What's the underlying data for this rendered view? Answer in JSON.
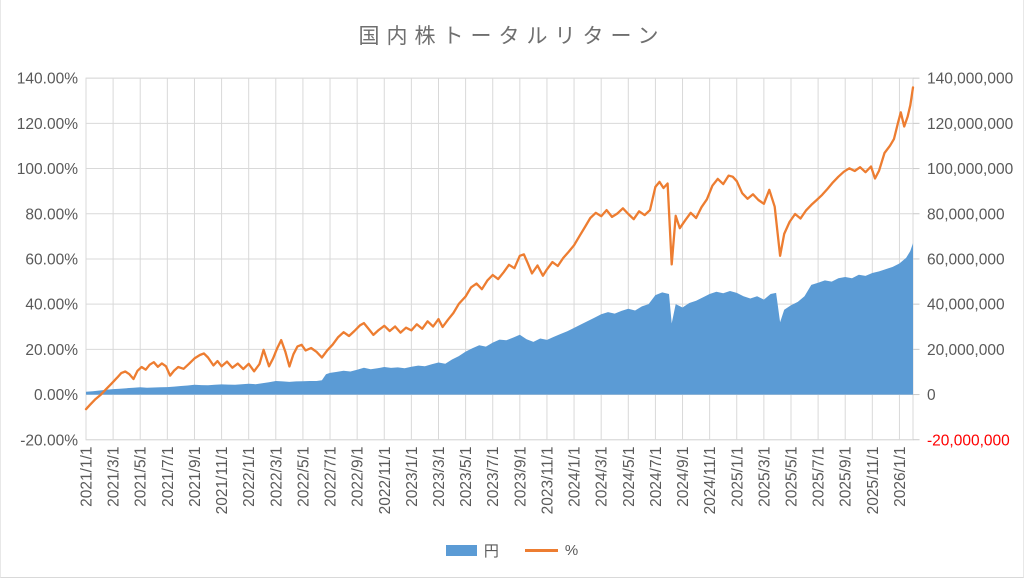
{
  "title": "国内株トータルリターン",
  "legend": {
    "items": [
      {
        "label": "円"
      },
      {
        "label": "%"
      }
    ]
  },
  "colors": {
    "yen_area": "#5B9BD5",
    "percent_line": "#ED7D31",
    "gridline": "#D9D9D9",
    "axis_text": "#595959",
    "negative_axis_text": "#FF0000",
    "title_text": "#6F6F6F"
  },
  "chart_data": {
    "type": "combo",
    "title": "国内株トータルリターン",
    "grid": true,
    "legend_position": "bottom",
    "x_axis": {
      "unit": "date",
      "tick_interval_months": 2,
      "label_rotation_deg": -90,
      "ticks": [
        "2021/1/1",
        "2021/3/1",
        "2021/5/1",
        "2021/7/1",
        "2021/9/1",
        "2021/11/1",
        "2022/1/1",
        "2022/3/1",
        "2022/5/1",
        "2022/7/1",
        "2022/9/1",
        "2022/11/1",
        "2023/1/1",
        "2023/3/1",
        "2023/5/1",
        "2023/7/1",
        "2023/9/1",
        "2023/11/1",
        "2024/1/1",
        "2024/3/1",
        "2024/5/1",
        "2024/7/1",
        "2024/9/1",
        "2024/11/1",
        "2025/1/1",
        "2025/3/1",
        "2025/5/1",
        "2025/7/1",
        "2025/9/1",
        "2025/11/1",
        "2026/1/1"
      ]
    },
    "left_axis": {
      "unit": "percent",
      "min": -20,
      "max": 140,
      "tick_step": 20,
      "ticks": [
        "140.00%",
        "120.00%",
        "100.00%",
        "80.00%",
        "60.00%",
        "40.00%",
        "20.00%",
        "0.00%",
        "-20.00%"
      ]
    },
    "right_axis": {
      "unit": "yen",
      "min": -20000000,
      "max": 140000000,
      "tick_step": 20000000,
      "negative_tick_color": "#FF0000",
      "ticks": [
        "140,000,000",
        "120,000,000",
        "100,000,000",
        "80,000,000",
        "60,000,000",
        "40,000,000",
        "20,000,000",
        "0",
        "-20,000,000"
      ]
    },
    "series": [
      {
        "name": "円",
        "chart_type": "area",
        "axis": "right",
        "color": "#5B9BD5",
        "x_unit": "months_since_2021_01",
        "value_unit": "million_yen",
        "points": [
          [
            0,
            1.2
          ],
          [
            0.5,
            1.5
          ],
          [
            1,
            1.8
          ],
          [
            1.5,
            2.1
          ],
          [
            2,
            2.4
          ],
          [
            2.5,
            2.6
          ],
          [
            3,
            2.8
          ],
          [
            3.5,
            3
          ],
          [
            4,
            3.2
          ],
          [
            4.5,
            3
          ],
          [
            5,
            3.1
          ],
          [
            5.5,
            3.2
          ],
          [
            6,
            3.3
          ],
          [
            6.5,
            3.5
          ],
          [
            7,
            3.8
          ],
          [
            7.5,
            4
          ],
          [
            8,
            4.3
          ],
          [
            8.5,
            4.2
          ],
          [
            9,
            4.1
          ],
          [
            9.5,
            4.3
          ],
          [
            10,
            4.5
          ],
          [
            10.5,
            4.4
          ],
          [
            11,
            4.3
          ],
          [
            11.5,
            4.6
          ],
          [
            12,
            4.8
          ],
          [
            12.5,
            4.6
          ],
          [
            13,
            5
          ],
          [
            13.5,
            5.4
          ],
          [
            14,
            6
          ],
          [
            14.5,
            5.8
          ],
          [
            15,
            5.6
          ],
          [
            15.5,
            5.8
          ],
          [
            16,
            5.9
          ],
          [
            16.5,
            6
          ],
          [
            17,
            6
          ],
          [
            17.4,
            6.3
          ],
          [
            17.7,
            9
          ],
          [
            18,
            9.6
          ],
          [
            18.5,
            10
          ],
          [
            19,
            10.5
          ],
          [
            19.5,
            10.2
          ],
          [
            20,
            11
          ],
          [
            20.5,
            11.9
          ],
          [
            21,
            11.2
          ],
          [
            21.5,
            11.6
          ],
          [
            22,
            12.2
          ],
          [
            22.5,
            11.8
          ],
          [
            23,
            12
          ],
          [
            23.5,
            11.6
          ],
          [
            24,
            12.3
          ],
          [
            24.5,
            12.8
          ],
          [
            25,
            12.5
          ],
          [
            25.5,
            13.4
          ],
          [
            26,
            14.2
          ],
          [
            26.5,
            13.6
          ],
          [
            27,
            15.5
          ],
          [
            27.5,
            17
          ],
          [
            28,
            19
          ],
          [
            28.5,
            20.5
          ],
          [
            29,
            21.8
          ],
          [
            29.5,
            21.2
          ],
          [
            30,
            23
          ],
          [
            30.5,
            24.3
          ],
          [
            31,
            24
          ],
          [
            31.5,
            25.2
          ],
          [
            32,
            26.5
          ],
          [
            32.5,
            24.5
          ],
          [
            33,
            23.3
          ],
          [
            33.5,
            24.8
          ],
          [
            34,
            24.2
          ],
          [
            34.5,
            25.5
          ],
          [
            35,
            26.8
          ],
          [
            35.5,
            28
          ],
          [
            36,
            29.5
          ],
          [
            36.5,
            31
          ],
          [
            37,
            32.5
          ],
          [
            37.5,
            34
          ],
          [
            38,
            35.5
          ],
          [
            38.5,
            36.5
          ],
          [
            39,
            35.8
          ],
          [
            39.5,
            37
          ],
          [
            40,
            38
          ],
          [
            40.5,
            37.2
          ],
          [
            41,
            39
          ],
          [
            41.5,
            40
          ],
          [
            42,
            44
          ],
          [
            42.5,
            45.2
          ],
          [
            43,
            44.5
          ],
          [
            43.2,
            31.5
          ],
          [
            43.5,
            40
          ],
          [
            44,
            38.5
          ],
          [
            44.5,
            40.5
          ],
          [
            45,
            41.5
          ],
          [
            45.5,
            43
          ],
          [
            46,
            44.5
          ],
          [
            46.5,
            45.5
          ],
          [
            47,
            44.8
          ],
          [
            47.5,
            45.8
          ],
          [
            48,
            45
          ],
          [
            48.5,
            43.5
          ],
          [
            49,
            42.5
          ],
          [
            49.5,
            43.5
          ],
          [
            50,
            42
          ],
          [
            50.5,
            44.5
          ],
          [
            50.9,
            45
          ],
          [
            51.2,
            32
          ],
          [
            51.5,
            37.5
          ],
          [
            52,
            39.5
          ],
          [
            52.5,
            41
          ],
          [
            53,
            43.5
          ],
          [
            53.5,
            48.5
          ],
          [
            54,
            49.5
          ],
          [
            54.5,
            50.5
          ],
          [
            55,
            50
          ],
          [
            55.5,
            51.5
          ],
          [
            56,
            52
          ],
          [
            56.5,
            51.5
          ],
          [
            57,
            53
          ],
          [
            57.5,
            52.5
          ],
          [
            58,
            53.8
          ],
          [
            58.5,
            54.5
          ],
          [
            59,
            55.5
          ],
          [
            59.5,
            56.5
          ],
          [
            60,
            58
          ],
          [
            60.5,
            60.5
          ],
          [
            60.8,
            63.5
          ],
          [
            61,
            67
          ]
        ]
      },
      {
        "name": "%",
        "chart_type": "line",
        "axis": "left",
        "color": "#ED7D31",
        "x_unit": "months_since_2021_01",
        "value_unit": "percent",
        "points": [
          [
            0,
            -6.5
          ],
          [
            0.3,
            -4.5
          ],
          [
            0.7,
            -2
          ],
          [
            1.1,
            0
          ],
          [
            1.5,
            2.5
          ],
          [
            1.9,
            5
          ],
          [
            2.3,
            7.5
          ],
          [
            2.6,
            9.5
          ],
          [
            2.9,
            10.2
          ],
          [
            3.2,
            9
          ],
          [
            3.5,
            6.9
          ],
          [
            3.8,
            10.5
          ],
          [
            4.1,
            12.2
          ],
          [
            4.4,
            11
          ],
          [
            4.7,
            13.2
          ],
          [
            5,
            14.3
          ],
          [
            5.3,
            12.3
          ],
          [
            5.6,
            13.8
          ],
          [
            5.9,
            12.5
          ],
          [
            6.2,
            8.4
          ],
          [
            6.5,
            10.6
          ],
          [
            6.8,
            12.2
          ],
          [
            7.2,
            11.4
          ],
          [
            7.6,
            13.6
          ],
          [
            8,
            16
          ],
          [
            8.4,
            17.5
          ],
          [
            8.7,
            18.2
          ],
          [
            9,
            16.4
          ],
          [
            9.4,
            12.9
          ],
          [
            9.7,
            14.8
          ],
          [
            10,
            12.5
          ],
          [
            10.4,
            14.6
          ],
          [
            10.8,
            11.9
          ],
          [
            11.2,
            13.7
          ],
          [
            11.6,
            11.3
          ],
          [
            12,
            13.6
          ],
          [
            12.4,
            10.3
          ],
          [
            12.8,
            13.5
          ],
          [
            13.1,
            19.8
          ],
          [
            13.5,
            12.5
          ],
          [
            13.8,
            16
          ],
          [
            14.1,
            20.5
          ],
          [
            14.4,
            24.1
          ],
          [
            14.7,
            19
          ],
          [
            15,
            12.4
          ],
          [
            15.3,
            17.8
          ],
          [
            15.6,
            21.3
          ],
          [
            15.9,
            22
          ],
          [
            16.2,
            19.5
          ],
          [
            16.6,
            20.6
          ],
          [
            17,
            18.9
          ],
          [
            17.4,
            16.4
          ],
          [
            17.8,
            19.6
          ],
          [
            18.2,
            22.1
          ],
          [
            18.6,
            25.4
          ],
          [
            19,
            27.6
          ],
          [
            19.4,
            25.9
          ],
          [
            19.8,
            28.1
          ],
          [
            20.2,
            30.6
          ],
          [
            20.5,
            31.6
          ],
          [
            20.8,
            29.4
          ],
          [
            21.2,
            26.4
          ],
          [
            21.6,
            28.6
          ],
          [
            22,
            30.4
          ],
          [
            22.4,
            28.1
          ],
          [
            22.8,
            30.1
          ],
          [
            23.2,
            27.4
          ],
          [
            23.6,
            29.6
          ],
          [
            24,
            28.4
          ],
          [
            24.4,
            31.1
          ],
          [
            24.8,
            29.1
          ],
          [
            25.2,
            32.4
          ],
          [
            25.6,
            30.1
          ],
          [
            26,
            33.4
          ],
          [
            26.3,
            29.9
          ],
          [
            26.7,
            33.1
          ],
          [
            27.1,
            36.1
          ],
          [
            27.5,
            40.1
          ],
          [
            28,
            43.4
          ],
          [
            28.4,
            47.4
          ],
          [
            28.8,
            49.1
          ],
          [
            29.2,
            46.6
          ],
          [
            29.6,
            50.4
          ],
          [
            30,
            52.9
          ],
          [
            30.4,
            51.1
          ],
          [
            30.8,
            54.1
          ],
          [
            31.2,
            57.4
          ],
          [
            31.6,
            55.9
          ],
          [
            32,
            61.4
          ],
          [
            32.3,
            62
          ],
          [
            32.6,
            57.9
          ],
          [
            32.9,
            53.6
          ],
          [
            33.3,
            57.1
          ],
          [
            33.7,
            52.6
          ],
          [
            34,
            55.4
          ],
          [
            34.4,
            58.6
          ],
          [
            34.8,
            56.9
          ],
          [
            35.2,
            60.4
          ],
          [
            35.6,
            63.1
          ],
          [
            36,
            66.1
          ],
          [
            36.4,
            70.1
          ],
          [
            36.8,
            74.1
          ],
          [
            37.2,
            78.1
          ],
          [
            37.6,
            80.4
          ],
          [
            38,
            78.9
          ],
          [
            38.4,
            81.6
          ],
          [
            38.8,
            78.6
          ],
          [
            39.2,
            80.1
          ],
          [
            39.6,
            82.4
          ],
          [
            40,
            79.9
          ],
          [
            40.4,
            77.6
          ],
          [
            40.8,
            81.1
          ],
          [
            41.2,
            79.4
          ],
          [
            41.6,
            81.6
          ],
          [
            42,
            91.9
          ],
          [
            42.3,
            94.1
          ],
          [
            42.6,
            91.4
          ],
          [
            42.9,
            93.4
          ],
          [
            43.2,
            57.6
          ],
          [
            43.5,
            79.1
          ],
          [
            43.8,
            73.6
          ],
          [
            44.2,
            77.1
          ],
          [
            44.6,
            80.4
          ],
          [
            45,
            78.1
          ],
          [
            45.4,
            82.9
          ],
          [
            45.8,
            86.4
          ],
          [
            46.2,
            92.4
          ],
          [
            46.6,
            95.4
          ],
          [
            47,
            93.1
          ],
          [
            47.4,
            96.9
          ],
          [
            47.7,
            96.4
          ],
          [
            48,
            94.4
          ],
          [
            48.4,
            89.1
          ],
          [
            48.8,
            86.6
          ],
          [
            49.2,
            88.6
          ],
          [
            49.6,
            86.1
          ],
          [
            50,
            84.4
          ],
          [
            50.4,
            90.6
          ],
          [
            50.8,
            83.1
          ],
          [
            51.2,
            61.4
          ],
          [
            51.5,
            71.1
          ],
          [
            51.9,
            76.4
          ],
          [
            52.3,
            79.9
          ],
          [
            52.7,
            77.9
          ],
          [
            53.1,
            81.4
          ],
          [
            53.5,
            83.9
          ],
          [
            53.9,
            86.1
          ],
          [
            54.3,
            88.4
          ],
          [
            54.7,
            91.1
          ],
          [
            55.1,
            93.9
          ],
          [
            55.5,
            96.4
          ],
          [
            55.9,
            98.6
          ],
          [
            56.3,
            100.1
          ],
          [
            56.7,
            98.9
          ],
          [
            57.1,
            100.6
          ],
          [
            57.5,
            98.4
          ],
          [
            57.9,
            100.9
          ],
          [
            58.2,
            95.6
          ],
          [
            58.5,
            99.1
          ],
          [
            58.9,
            106.9
          ],
          [
            59.3,
            110.1
          ],
          [
            59.6,
            113.1
          ],
          [
            59.9,
            120.4
          ],
          [
            60.1,
            124.9
          ],
          [
            60.35,
            118.6
          ],
          [
            60.6,
            122.9
          ],
          [
            60.8,
            128
          ],
          [
            61,
            135.9
          ]
        ]
      }
    ]
  }
}
